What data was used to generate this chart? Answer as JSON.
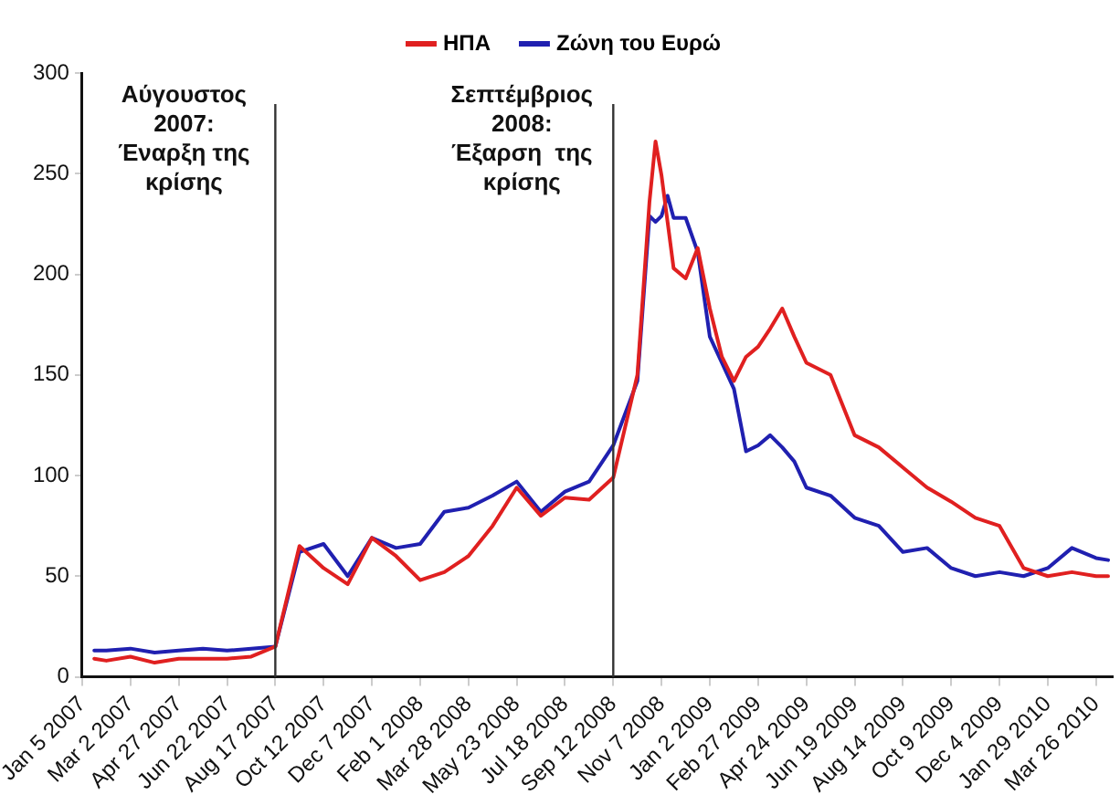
{
  "chart_data": {
    "type": "line",
    "x": [
      "2007-01-19",
      "2007-02-02",
      "2007-03-02",
      "2007-03-30",
      "2007-04-27",
      "2007-05-25",
      "2007-06-22",
      "2007-07-20",
      "2007-08-17",
      "2007-09-14",
      "2007-10-12",
      "2007-11-09",
      "2007-12-07",
      "2008-01-04",
      "2008-02-01",
      "2008-02-29",
      "2008-03-28",
      "2008-04-25",
      "2008-05-23",
      "2008-06-20",
      "2008-07-18",
      "2008-08-15",
      "2008-09-12",
      "2008-10-10",
      "2008-10-24",
      "2008-10-31",
      "2008-11-07",
      "2008-11-14",
      "2008-11-21",
      "2008-12-05",
      "2008-12-19",
      "2009-01-02",
      "2009-01-16",
      "2009-01-30",
      "2009-02-13",
      "2009-02-27",
      "2009-03-13",
      "2009-03-27",
      "2009-04-10",
      "2009-04-24",
      "2009-05-22",
      "2009-06-19",
      "2009-07-17",
      "2009-08-14",
      "2009-09-11",
      "2009-10-09",
      "2009-11-06",
      "2009-12-04",
      "2010-01-01",
      "2010-01-29",
      "2010-02-26",
      "2010-03-26",
      "2010-04-09"
    ],
    "series": [
      {
        "name": "ΗΠΑ",
        "color": "#e02020",
        "values": [
          9,
          8,
          10,
          7,
          9,
          9,
          9,
          10,
          15,
          65,
          54,
          46,
          69,
          60,
          48,
          52,
          60,
          75,
          94,
          80,
          89,
          88,
          99,
          150,
          236,
          266,
          249,
          226,
          203,
          198,
          213,
          183,
          159,
          147,
          159,
          164,
          173,
          183,
          169,
          156,
          150,
          120,
          114,
          104,
          94,
          87,
          79,
          75,
          54,
          50,
          52,
          50,
          50
        ]
      },
      {
        "name": "Ζώνη του Ευρώ",
        "color": "#2020b0",
        "values": [
          13,
          13,
          14,
          12,
          13,
          14,
          13,
          14,
          15,
          62,
          66,
          50,
          69,
          64,
          66,
          82,
          84,
          90,
          97,
          82,
          92,
          97,
          115,
          147,
          229,
          226,
          229,
          239,
          228,
          228,
          211,
          169,
          156,
          143,
          112,
          115,
          120,
          114,
          107,
          94,
          90,
          79,
          75,
          62,
          64,
          54,
          50,
          52,
          50,
          54,
          64,
          59,
          58
        ]
      }
    ],
    "xlim": [
      "2007-01-05",
      "2010-04-14"
    ],
    "xticks": [
      {
        "value": "2007-01-05",
        "label": "Jan 5 2007"
      },
      {
        "value": "2007-03-02",
        "label": "Mar 2 2007"
      },
      {
        "value": "2007-04-27",
        "label": "Apr 27 2007"
      },
      {
        "value": "2007-06-22",
        "label": "Jun 22 2007"
      },
      {
        "value": "2007-08-17",
        "label": "Aug 17 2007"
      },
      {
        "value": "2007-10-12",
        "label": "Oct 12 2007"
      },
      {
        "value": "2007-12-07",
        "label": "Dec 7 2007"
      },
      {
        "value": "2008-02-01",
        "label": "Feb 1 2008"
      },
      {
        "value": "2008-03-28",
        "label": "Mar 28 2008"
      },
      {
        "value": "2008-05-23",
        "label": "May 23 2008"
      },
      {
        "value": "2008-07-18",
        "label": "Jul 18 2008"
      },
      {
        "value": "2008-09-12",
        "label": "Sep 12 2008"
      },
      {
        "value": "2008-11-07",
        "label": "Nov 7 2008"
      },
      {
        "value": "2009-01-02",
        "label": "Jan 2 2009"
      },
      {
        "value": "2009-02-27",
        "label": "Feb 27 2009"
      },
      {
        "value": "2009-04-24",
        "label": "Apr 24 2009"
      },
      {
        "value": "2009-06-19",
        "label": "Jun 19 2009"
      },
      {
        "value": "2009-08-14",
        "label": "Aug 14 2009"
      },
      {
        "value": "2009-10-09",
        "label": "Oct 9 2009"
      },
      {
        "value": "2009-12-04",
        "label": "Dec 4 2009"
      },
      {
        "value": "2010-01-29",
        "label": "Jan 29 2010"
      },
      {
        "value": "2010-03-26",
        "label": "Mar 26 2010"
      }
    ],
    "ylim": [
      0,
      300
    ],
    "yticks": [
      0,
      50,
      100,
      150,
      200,
      250,
      300
    ],
    "ref_lines": [
      {
        "axis": "x",
        "value": "2007-08-17",
        "label": "Αύγουστος\n2007:\nΈναρξη της\nκρίσης"
      },
      {
        "axis": "x",
        "value": "2008-09-12",
        "label": "Σεπτέμβριος\n2008:\nΈξαρση  της\nκρίσης"
      }
    ],
    "grid": false,
    "legend": "top",
    "marker": "none",
    "line_style": "solid"
  }
}
